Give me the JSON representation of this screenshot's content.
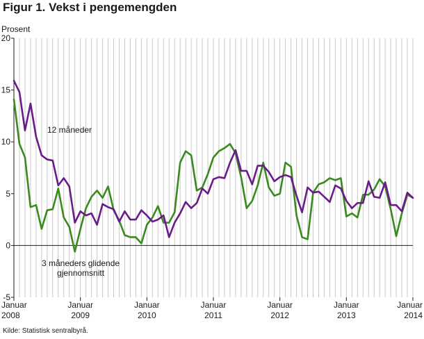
{
  "title": "Figur 1. Vekst i pengemengden",
  "source": "Kilde: Statistisk sentralbyrå.",
  "chart_data": {
    "type": "line",
    "ylabel": "Prosent",
    "ylim": [
      -5,
      20
    ],
    "yticks": [
      -5,
      0,
      5,
      10,
      15,
      20
    ],
    "grid": "vertical monthly gridlines",
    "x_tick_labels": [
      {
        "month": "Januar",
        "year": "2008"
      },
      {
        "month": "Januar",
        "year": "2009"
      },
      {
        "month": "Januar",
        "year": "2010"
      },
      {
        "month": "Januar",
        "year": "2011"
      },
      {
        "month": "Januar",
        "year": "2012"
      },
      {
        "month": "Januar",
        "year": "2013"
      },
      {
        "month": "Januar",
        "year": "2014"
      }
    ],
    "x_start": "2008-01",
    "x_end": "2014-01",
    "colors": {
      "12m": "#6a1b8a",
      "3m": "#3a8a1e",
      "grid": "#c8c8c8",
      "axis": "#1a1a1a"
    },
    "series": [
      {
        "name": "12 måneder",
        "color": "#6a1b8a",
        "values": [
          15.9,
          14.8,
          11.1,
          13.7,
          10.5,
          8.7,
          8.3,
          8.2,
          5.8,
          6.5,
          5.7,
          2.2,
          3.3,
          2.9,
          3.1,
          2.0,
          4.0,
          3.7,
          3.5,
          2.3,
          3.3,
          2.5,
          2.5,
          3.4,
          2.9,
          2.3,
          2.5,
          2.9,
          0.8,
          2.2,
          3.1,
          4.2,
          3.6,
          4.1,
          5.5,
          5.0,
          6.4,
          6.6,
          6.5,
          8.0,
          9.2,
          7.2,
          7.2,
          5.9,
          7.7,
          7.7,
          7.1,
          6.2,
          6.6,
          6.8,
          6.6,
          4.8,
          3.2,
          5.6,
          5.1,
          5.2,
          4.7,
          4.2,
          5.8,
          5.5,
          4.3,
          3.6,
          4.1,
          4.1,
          6.2,
          4.7,
          4.6,
          6.1,
          3.9,
          3.9,
          3.3,
          5.1,
          4.6
        ]
      },
      {
        "name": "3 måneders glidende gjennomsnitt",
        "color": "#3a8a1e",
        "values": [
          14.1,
          9.8,
          8.5,
          3.7,
          3.9,
          1.6,
          3.4,
          3.5,
          5.5,
          2.7,
          1.8,
          -0.6,
          1.6,
          3.6,
          4.7,
          5.3,
          4.6,
          5.7,
          3.4,
          2.4,
          1.0,
          0.8,
          0.8,
          0.2,
          2.0,
          2.7,
          3.8,
          2.2,
          2.2,
          3.2,
          8.0,
          9.1,
          8.7,
          5.3,
          5.6,
          6.9,
          8.5,
          9.1,
          9.4,
          9.8,
          8.9,
          6.6,
          3.6,
          4.3,
          5.8,
          8.0,
          5.6,
          4.8,
          5.0,
          8.0,
          7.6,
          2.9,
          0.8,
          0.6,
          5.1,
          5.9,
          6.1,
          6.5,
          6.3,
          6.5,
          2.8,
          3.1,
          2.7,
          4.9,
          4.9,
          5.4,
          6.4,
          5.7,
          3.5,
          0.9,
          3.1,
          4.9,
          4.6
        ]
      }
    ],
    "annotations": [
      {
        "text": "12 måneder",
        "series": "12 måneder"
      },
      {
        "text": "3 måneders glidende",
        "series": "3 måneders glidende gjennomsnitt"
      },
      {
        "text": "gjennomsnitt",
        "series": "3 måneders glidende gjennomsnitt"
      }
    ]
  }
}
